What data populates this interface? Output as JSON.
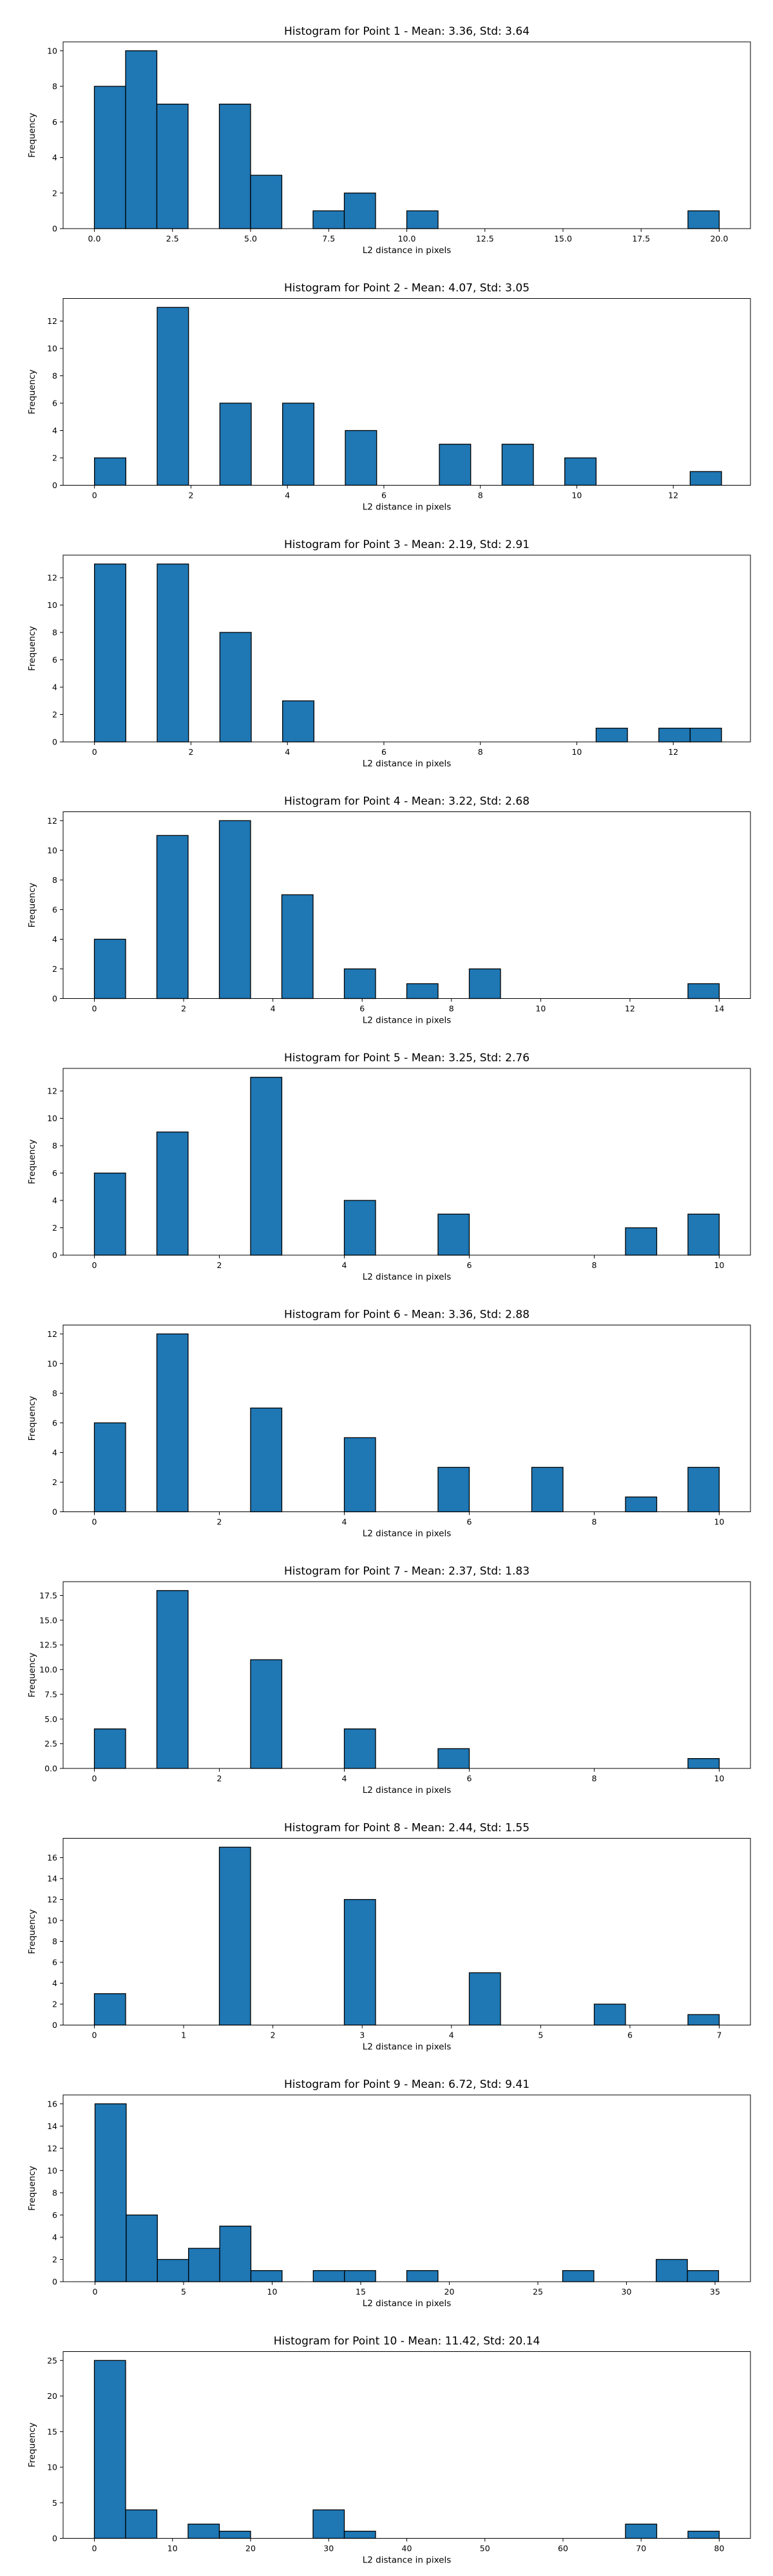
{
  "figure": {
    "background": "#ffffff"
  },
  "style": {
    "bar_fill": "#1f77b4",
    "bar_edge": "#000000"
  },
  "chart_data": [
    {
      "type": "bar",
      "title": "Histogram for Point 1 - Mean: 3.36, Std: 3.64",
      "xlabel": "L2 distance in pixels",
      "ylabel": "Frequency",
      "xlim": [
        -1.0,
        21.0
      ],
      "ylim": [
        0,
        10.5
      ],
      "xticks": [
        0.0,
        2.5,
        5.0,
        7.5,
        10.0,
        12.5,
        15.0,
        17.5,
        20.0
      ],
      "xtick_labels": [
        "0.0",
        "2.5",
        "5.0",
        "7.5",
        "10.0",
        "12.5",
        "15.0",
        "17.5",
        "20.0"
      ],
      "yticks": [
        0,
        2,
        4,
        6,
        8,
        10
      ],
      "ytick_labels": [
        "0",
        "2",
        "4",
        "6",
        "8",
        "10"
      ],
      "bins": [
        {
          "x0": 0.0,
          "x1": 1.0,
          "count": 8
        },
        {
          "x0": 1.0,
          "x1": 2.0,
          "count": 10
        },
        {
          "x0": 2.0,
          "x1": 3.0,
          "count": 7
        },
        {
          "x0": 4.0,
          "x1": 5.0,
          "count": 7
        },
        {
          "x0": 5.0,
          "x1": 6.0,
          "count": 3
        },
        {
          "x0": 7.0,
          "x1": 8.0,
          "count": 1
        },
        {
          "x0": 8.0,
          "x1": 9.0,
          "count": 2
        },
        {
          "x0": 10.0,
          "x1": 11.0,
          "count": 1
        },
        {
          "x0": 19.0,
          "x1": 20.0,
          "count": 1
        }
      ]
    },
    {
      "type": "bar",
      "title": "Histogram for Point 2 - Mean: 4.07, Std: 3.05",
      "xlabel": "L2 distance in pixels",
      "ylabel": "Frequency",
      "xlim": [
        -0.65,
        13.6
      ],
      "ylim": [
        0,
        13.65
      ],
      "xticks": [
        0,
        2,
        4,
        6,
        8,
        10,
        12
      ],
      "xtick_labels": [
        "0",
        "2",
        "4",
        "6",
        "8",
        "10",
        "12"
      ],
      "yticks": [
        0,
        2,
        4,
        6,
        8,
        10,
        12
      ],
      "ytick_labels": [
        "0",
        "2",
        "4",
        "6",
        "8",
        "10",
        "12"
      ],
      "bins": [
        {
          "x0": 0.0,
          "x1": 0.65,
          "count": 2
        },
        {
          "x0": 1.3,
          "x1": 1.95,
          "count": 13
        },
        {
          "x0": 2.6,
          "x1": 3.25,
          "count": 6
        },
        {
          "x0": 3.9,
          "x1": 4.55,
          "count": 6
        },
        {
          "x0": 5.2,
          "x1": 5.85,
          "count": 4
        },
        {
          "x0": 7.15,
          "x1": 7.8,
          "count": 3
        },
        {
          "x0": 8.45,
          "x1": 9.1,
          "count": 3
        },
        {
          "x0": 9.75,
          "x1": 10.4,
          "count": 2
        },
        {
          "x0": 12.35,
          "x1": 13.0,
          "count": 1
        }
      ]
    },
    {
      "type": "bar",
      "title": "Histogram for Point 3 - Mean: 2.19, Std: 2.91",
      "xlabel": "L2 distance in pixels",
      "ylabel": "Frequency",
      "xlim": [
        -0.65,
        13.6
      ],
      "ylim": [
        0,
        13.65
      ],
      "xticks": [
        0,
        2,
        4,
        6,
        8,
        10,
        12
      ],
      "xtick_labels": [
        "0",
        "2",
        "4",
        "6",
        "8",
        "10",
        "12"
      ],
      "yticks": [
        0,
        2,
        4,
        6,
        8,
        10,
        12
      ],
      "ytick_labels": [
        "0",
        "2",
        "4",
        "6",
        "8",
        "10",
        "12"
      ],
      "bins": [
        {
          "x0": 0.0,
          "x1": 0.65,
          "count": 13
        },
        {
          "x0": 1.3,
          "x1": 1.95,
          "count": 13
        },
        {
          "x0": 2.6,
          "x1": 3.25,
          "count": 8
        },
        {
          "x0": 3.9,
          "x1": 4.55,
          "count": 3
        },
        {
          "x0": 10.4,
          "x1": 11.05,
          "count": 1
        },
        {
          "x0": 11.7,
          "x1": 12.35,
          "count": 1
        },
        {
          "x0": 12.35,
          "x1": 13.0,
          "count": 1
        }
      ]
    },
    {
      "type": "bar",
      "title": "Histogram for Point 4 - Mean: 3.22, Std: 2.68",
      "xlabel": "L2 distance in pixels",
      "ylabel": "Frequency",
      "xlim": [
        -0.7,
        14.7
      ],
      "ylim": [
        0,
        12.6
      ],
      "xticks": [
        0,
        2,
        4,
        6,
        8,
        10,
        12,
        14
      ],
      "xtick_labels": [
        "0",
        "2",
        "4",
        "6",
        "8",
        "10",
        "12",
        "14"
      ],
      "yticks": [
        0,
        2,
        4,
        6,
        8,
        10,
        12
      ],
      "ytick_labels": [
        "0",
        "2",
        "4",
        "6",
        "8",
        "10",
        "12"
      ],
      "bins": [
        {
          "x0": 0.0,
          "x1": 0.7,
          "count": 4
        },
        {
          "x0": 1.4,
          "x1": 2.1,
          "count": 11
        },
        {
          "x0": 2.8,
          "x1": 3.5,
          "count": 12
        },
        {
          "x0": 4.2,
          "x1": 4.9,
          "count": 7
        },
        {
          "x0": 5.6,
          "x1": 6.3,
          "count": 2
        },
        {
          "x0": 7.0,
          "x1": 7.7,
          "count": 1
        },
        {
          "x0": 8.4,
          "x1": 9.1,
          "count": 2
        },
        {
          "x0": 13.3,
          "x1": 14.0,
          "count": 1
        }
      ]
    },
    {
      "type": "bar",
      "title": "Histogram for Point 5 - Mean: 3.25, Std: 2.76",
      "xlabel": "L2 distance in pixels",
      "ylabel": "Frequency",
      "xlim": [
        -0.5,
        10.5
      ],
      "ylim": [
        0,
        13.65
      ],
      "xticks": [
        0,
        2,
        4,
        6,
        8,
        10
      ],
      "xtick_labels": [
        "0",
        "2",
        "4",
        "6",
        "8",
        "10"
      ],
      "yticks": [
        0,
        2,
        4,
        6,
        8,
        10,
        12
      ],
      "ytick_labels": [
        "0",
        "2",
        "4",
        "6",
        "8",
        "10",
        "12"
      ],
      "bins": [
        {
          "x0": 0.0,
          "x1": 0.5,
          "count": 6
        },
        {
          "x0": 1.0,
          "x1": 1.5,
          "count": 9
        },
        {
          "x0": 2.5,
          "x1": 3.0,
          "count": 13
        },
        {
          "x0": 4.0,
          "x1": 4.5,
          "count": 4
        },
        {
          "x0": 5.5,
          "x1": 6.0,
          "count": 3
        },
        {
          "x0": 8.5,
          "x1": 9.0,
          "count": 2
        },
        {
          "x0": 9.5,
          "x1": 10.0,
          "count": 3
        }
      ]
    },
    {
      "type": "bar",
      "title": "Histogram for Point 6 - Mean: 3.36, Std: 2.88",
      "xlabel": "L2 distance in pixels",
      "ylabel": "Frequency",
      "xlim": [
        -0.5,
        10.5
      ],
      "ylim": [
        0,
        12.6
      ],
      "xticks": [
        0,
        2,
        4,
        6,
        8,
        10
      ],
      "xtick_labels": [
        "0",
        "2",
        "4",
        "6",
        "8",
        "10"
      ],
      "yticks": [
        0,
        2,
        4,
        6,
        8,
        10,
        12
      ],
      "ytick_labels": [
        "0",
        "2",
        "4",
        "6",
        "8",
        "10",
        "12"
      ],
      "bins": [
        {
          "x0": 0.0,
          "x1": 0.5,
          "count": 6
        },
        {
          "x0": 1.0,
          "x1": 1.5,
          "count": 12
        },
        {
          "x0": 2.5,
          "x1": 3.0,
          "count": 7
        },
        {
          "x0": 4.0,
          "x1": 4.5,
          "count": 5
        },
        {
          "x0": 5.5,
          "x1": 6.0,
          "count": 3
        },
        {
          "x0": 7.0,
          "x1": 7.5,
          "count": 3
        },
        {
          "x0": 8.5,
          "x1": 9.0,
          "count": 1
        },
        {
          "x0": 9.5,
          "x1": 10.0,
          "count": 3
        }
      ]
    },
    {
      "type": "bar",
      "title": "Histogram for Point 7 - Mean: 2.37, Std: 1.83",
      "xlabel": "L2 distance in pixels",
      "ylabel": "Frequency",
      "xlim": [
        -0.5,
        10.5
      ],
      "ylim": [
        0,
        18.9
      ],
      "xticks": [
        0,
        2,
        4,
        6,
        8,
        10
      ],
      "xtick_labels": [
        "0",
        "2",
        "4",
        "6",
        "8",
        "10"
      ],
      "yticks": [
        0,
        2.5,
        5,
        7.5,
        10,
        12.5,
        15,
        17.5
      ],
      "ytick_labels": [
        "0.0",
        "2.5",
        "5.0",
        "7.5",
        "10.0",
        "12.5",
        "15.0",
        "17.5"
      ],
      "bins": [
        {
          "x0": 0.0,
          "x1": 0.5,
          "count": 4
        },
        {
          "x0": 1.0,
          "x1": 1.5,
          "count": 18
        },
        {
          "x0": 2.5,
          "x1": 3.0,
          "count": 11
        },
        {
          "x0": 4.0,
          "x1": 4.5,
          "count": 4
        },
        {
          "x0": 5.5,
          "x1": 6.0,
          "count": 2
        },
        {
          "x0": 9.5,
          "x1": 10.0,
          "count": 1
        }
      ]
    },
    {
      "type": "bar",
      "title": "Histogram for Point 8 - Mean: 2.44, Std: 1.55",
      "xlabel": "L2 distance in pixels",
      "ylabel": "Frequency",
      "xlim": [
        -0.35,
        7.35
      ],
      "ylim": [
        0,
        17.85
      ],
      "xticks": [
        0,
        1,
        2,
        3,
        4,
        5,
        6,
        7
      ],
      "xtick_labels": [
        "0",
        "1",
        "2",
        "3",
        "4",
        "5",
        "6",
        "7"
      ],
      "yticks": [
        0,
        2,
        4,
        6,
        8,
        10,
        12,
        14,
        16
      ],
      "ytick_labels": [
        "0",
        "2",
        "4",
        "6",
        "8",
        "10",
        "12",
        "14",
        "16"
      ],
      "bins": [
        {
          "x0": 0.0,
          "x1": 0.35,
          "count": 3
        },
        {
          "x0": 1.4,
          "x1": 1.75,
          "count": 17
        },
        {
          "x0": 2.8,
          "x1": 3.15,
          "count": 12
        },
        {
          "x0": 4.2,
          "x1": 4.55,
          "count": 5
        },
        {
          "x0": 5.6,
          "x1": 5.95,
          "count": 2
        },
        {
          "x0": 6.65,
          "x1": 7.0,
          "count": 1
        }
      ]
    },
    {
      "type": "bar",
      "title": "Histogram for Point 9 - Mean: 6.72, Std: 9.41",
      "xlabel": "L2 distance in pixels",
      "ylabel": "Frequency",
      "xlim": [
        -1.8,
        37.0
      ],
      "ylim": [
        0,
        16.8
      ],
      "xticks": [
        0,
        5,
        10,
        15,
        20,
        25,
        30,
        35
      ],
      "xtick_labels": [
        "0",
        "5",
        "10",
        "15",
        "20",
        "25",
        "30",
        "35"
      ],
      "yticks": [
        0,
        2,
        4,
        6,
        8,
        10,
        12,
        14,
        16
      ],
      "ytick_labels": [
        "0",
        "2",
        "4",
        "6",
        "8",
        "10",
        "12",
        "14",
        "16"
      ],
      "bins": [
        {
          "x0": 0.0,
          "x1": 1.76,
          "count": 16
        },
        {
          "x0": 1.76,
          "x1": 3.52,
          "count": 6
        },
        {
          "x0": 3.52,
          "x1": 5.28,
          "count": 2
        },
        {
          "x0": 5.28,
          "x1": 7.04,
          "count": 3
        },
        {
          "x0": 7.04,
          "x1": 8.8,
          "count": 5
        },
        {
          "x0": 8.8,
          "x1": 10.56,
          "count": 1
        },
        {
          "x0": 12.32,
          "x1": 14.08,
          "count": 1
        },
        {
          "x0": 14.08,
          "x1": 15.84,
          "count": 1
        },
        {
          "x0": 17.6,
          "x1": 19.36,
          "count": 1
        },
        {
          "x0": 26.4,
          "x1": 28.16,
          "count": 1
        },
        {
          "x0": 31.68,
          "x1": 33.44,
          "count": 2
        },
        {
          "x0": 33.44,
          "x1": 35.2,
          "count": 1
        }
      ]
    },
    {
      "type": "bar",
      "title": "Histogram for Point 10 - Mean: 11.42, Std: 20.14",
      "xlabel": "L2 distance in pixels",
      "ylabel": "Frequency",
      "xlim": [
        -4.0,
        84.0
      ],
      "ylim": [
        0,
        26.25
      ],
      "xticks": [
        0,
        10,
        20,
        30,
        40,
        50,
        60,
        70,
        80
      ],
      "xtick_labels": [
        "0",
        "10",
        "20",
        "30",
        "40",
        "50",
        "60",
        "70",
        "80"
      ],
      "yticks": [
        0,
        5,
        10,
        15,
        20,
        25
      ],
      "ytick_labels": [
        "0",
        "5",
        "10",
        "15",
        "20",
        "25"
      ],
      "bins": [
        {
          "x0": 0.0,
          "x1": 4.0,
          "count": 25
        },
        {
          "x0": 4.0,
          "x1": 8.0,
          "count": 4
        },
        {
          "x0": 12.0,
          "x1": 16.0,
          "count": 2
        },
        {
          "x0": 16.0,
          "x1": 20.0,
          "count": 1
        },
        {
          "x0": 28.0,
          "x1": 32.0,
          "count": 4
        },
        {
          "x0": 32.0,
          "x1": 36.0,
          "count": 1
        },
        {
          "x0": 68.0,
          "x1": 72.0,
          "count": 2
        },
        {
          "x0": 76.0,
          "x1": 80.0,
          "count": 1
        }
      ]
    }
  ]
}
